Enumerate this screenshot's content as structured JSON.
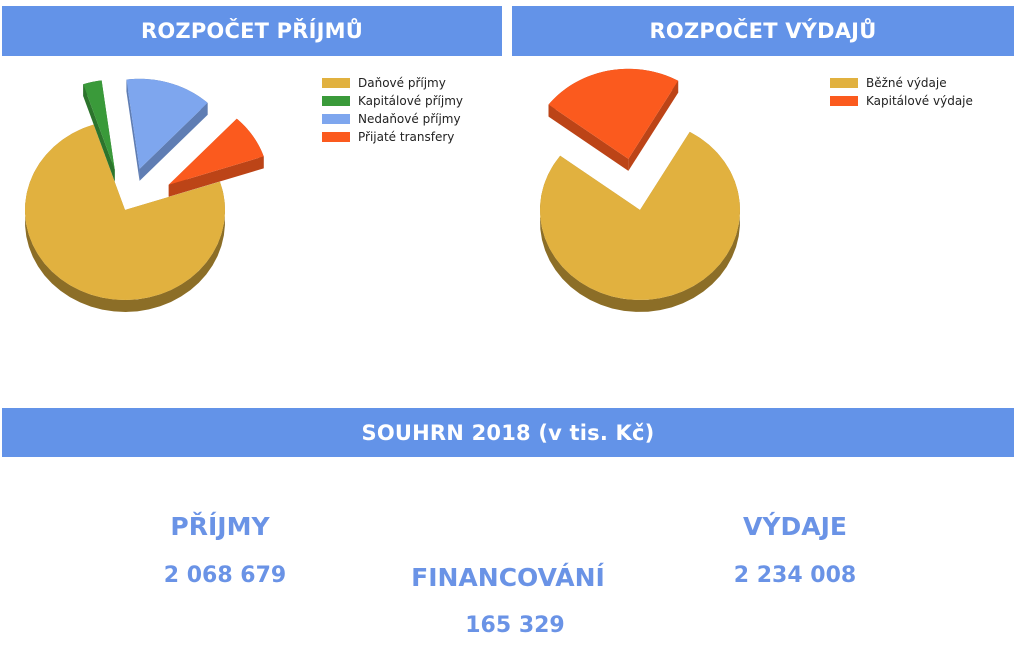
{
  "headers": {
    "income": "ROZPOČET PŘÍJMŮ",
    "expense": "ROZPOČET VÝDAJŮ",
    "summary": "SOUHRN  2018 (v tis. Kč)"
  },
  "summary": {
    "income_title": "PŘÍJMY",
    "income_value": "2 068 679",
    "financing_title": "FINANCOVÁNÍ",
    "financing_value": "165 329",
    "expense_title": "VÝDAJE",
    "expense_value": "2 234 008"
  },
  "chart_data": [
    {
      "type": "pie",
      "style": "3d-exploded",
      "title": "ROZPOČET PŘÍJMŮ",
      "legend_position": "top-right",
      "labels": [
        "Daňové příjmy",
        "Kapitálové příjmy",
        "Nedaňové příjmy",
        "Přijaté transfery"
      ],
      "values": [
        75,
        3,
        14,
        8
      ],
      "colors": [
        "#e1b13f",
        "#3a9a3a",
        "#7ea6ee",
        "#fb5a1e"
      ]
    },
    {
      "type": "pie",
      "style": "3d-exploded",
      "title": "ROZPOČET VÝDAJŮ",
      "legend_position": "top-right",
      "labels": [
        "Běžné výdaje",
        "Kapitálové výdaje"
      ],
      "values": [
        77,
        23
      ],
      "colors": [
        "#e1b13f",
        "#fb5a1e"
      ]
    }
  ]
}
